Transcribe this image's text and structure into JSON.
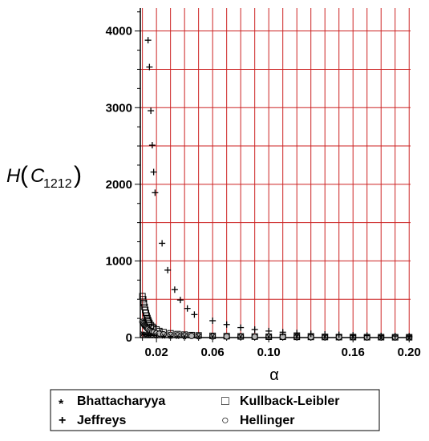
{
  "chart_data": {
    "type": "scatter",
    "ylabel": {
      "main": "H",
      "sub": "1212",
      "symbol": "C"
    },
    "xlabel": "α",
    "xlim": [
      0.0085,
      0.201
    ],
    "ylim": [
      0,
      4300
    ],
    "x_ticks": [
      0.02,
      0.06,
      0.1,
      0.16,
      0.2
    ],
    "x_tick_labels": [
      "0.02",
      "0.06",
      "0.10",
      "0.16",
      "0.20"
    ],
    "y_ticks": [
      0,
      1000,
      2000,
      3000,
      4000
    ],
    "y_tick_labels": [
      "0",
      "1000",
      "2000",
      "3000",
      "4000"
    ],
    "grid": true,
    "grid_color": "#cc2222",
    "legend_position": "bottom",
    "series": [
      {
        "name": "Bhattacharyya",
        "marker": "*",
        "points": [
          [
            0.01,
            48
          ],
          [
            0.011,
            44
          ],
          [
            0.012,
            40
          ],
          [
            0.013,
            36
          ],
          [
            0.014,
            33
          ],
          [
            0.015,
            30
          ],
          [
            0.016,
            28
          ],
          [
            0.018,
            25
          ],
          [
            0.02,
            22
          ],
          [
            0.025,
            18
          ],
          [
            0.03,
            15
          ],
          [
            0.035,
            13
          ],
          [
            0.04,
            11
          ],
          [
            0.05,
            9
          ],
          [
            0.06,
            8
          ],
          [
            0.08,
            6
          ],
          [
            0.1,
            5
          ],
          [
            0.12,
            4
          ],
          [
            0.14,
            3
          ],
          [
            0.16,
            3
          ],
          [
            0.18,
            2
          ],
          [
            0.2,
            2
          ]
        ]
      },
      {
        "name": "Kullback-Leibler",
        "marker": "square",
        "points": [
          [
            0.01,
            540
          ],
          [
            0.0105,
            500
          ],
          [
            0.011,
            450
          ],
          [
            0.0115,
            400
          ],
          [
            0.012,
            360
          ],
          [
            0.0125,
            320
          ],
          [
            0.013,
            285
          ],
          [
            0.0135,
            255
          ],
          [
            0.014,
            230
          ],
          [
            0.0145,
            205
          ],
          [
            0.015,
            185
          ],
          [
            0.016,
            160
          ],
          [
            0.017,
            140
          ],
          [
            0.018,
            125
          ],
          [
            0.02,
            105
          ],
          [
            0.022,
            85
          ],
          [
            0.025,
            70
          ],
          [
            0.03,
            55
          ],
          [
            0.035,
            45
          ],
          [
            0.04,
            38
          ],
          [
            0.045,
            32
          ],
          [
            0.05,
            28
          ],
          [
            0.06,
            22
          ],
          [
            0.07,
            18
          ],
          [
            0.08,
            15
          ],
          [
            0.09,
            13
          ],
          [
            0.1,
            11
          ],
          [
            0.11,
            10
          ],
          [
            0.12,
            9
          ],
          [
            0.13,
            8
          ],
          [
            0.14,
            7
          ],
          [
            0.15,
            6
          ],
          [
            0.16,
            6
          ],
          [
            0.17,
            5
          ],
          [
            0.18,
            5
          ],
          [
            0.19,
            4
          ],
          [
            0.2,
            4
          ]
        ]
      },
      {
        "name": "Jeffreys",
        "marker": "+",
        "points": [
          [
            0.014,
            3880
          ],
          [
            0.015,
            3530
          ],
          [
            0.016,
            2960
          ],
          [
            0.017,
            2510
          ],
          [
            0.018,
            2160
          ],
          [
            0.019,
            1890
          ],
          [
            0.024,
            1230
          ],
          [
            0.028,
            880
          ],
          [
            0.033,
            625
          ],
          [
            0.037,
            490
          ],
          [
            0.042,
            380
          ],
          [
            0.047,
            300
          ],
          [
            0.06,
            220
          ],
          [
            0.07,
            170
          ],
          [
            0.08,
            130
          ],
          [
            0.09,
            105
          ],
          [
            0.1,
            85
          ],
          [
            0.11,
            70
          ],
          [
            0.12,
            60
          ],
          [
            0.13,
            50
          ],
          [
            0.14,
            42
          ],
          [
            0.15,
            36
          ],
          [
            0.16,
            30
          ],
          [
            0.17,
            26
          ],
          [
            0.18,
            22
          ],
          [
            0.19,
            20
          ],
          [
            0.2,
            18
          ]
        ]
      },
      {
        "name": "Hellinger",
        "marker": "circle",
        "points": [
          [
            0.01,
            205
          ],
          [
            0.0105,
            190
          ],
          [
            0.011,
            175
          ],
          [
            0.0115,
            160
          ],
          [
            0.012,
            150
          ],
          [
            0.0125,
            140
          ],
          [
            0.013,
            130
          ],
          [
            0.0135,
            120
          ],
          [
            0.014,
            110
          ],
          [
            0.015,
            95
          ],
          [
            0.016,
            85
          ],
          [
            0.017,
            75
          ],
          [
            0.018,
            68
          ],
          [
            0.02,
            58
          ],
          [
            0.022,
            50
          ],
          [
            0.025,
            42
          ],
          [
            0.03,
            35
          ],
          [
            0.035,
            30
          ],
          [
            0.04,
            26
          ],
          [
            0.045,
            22
          ],
          [
            0.05,
            20
          ],
          [
            0.06,
            16
          ],
          [
            0.07,
            14
          ],
          [
            0.08,
            12
          ],
          [
            0.09,
            11
          ],
          [
            0.1,
            10
          ],
          [
            0.11,
            9
          ],
          [
            0.12,
            8
          ],
          [
            0.13,
            7
          ],
          [
            0.14,
            7
          ],
          [
            0.15,
            6
          ],
          [
            0.16,
            6
          ],
          [
            0.17,
            5
          ],
          [
            0.18,
            5
          ],
          [
            0.19,
            5
          ],
          [
            0.2,
            4
          ]
        ]
      }
    ],
    "legend": {
      "entries": [
        {
          "symbol": "*",
          "label": "Bhattacharyya"
        },
        {
          "symbol": "□",
          "label": "Kullback-Leibler"
        },
        {
          "symbol": "+",
          "label": "Jeffreys"
        },
        {
          "symbol": "○",
          "label": "Hellinger"
        }
      ]
    }
  }
}
